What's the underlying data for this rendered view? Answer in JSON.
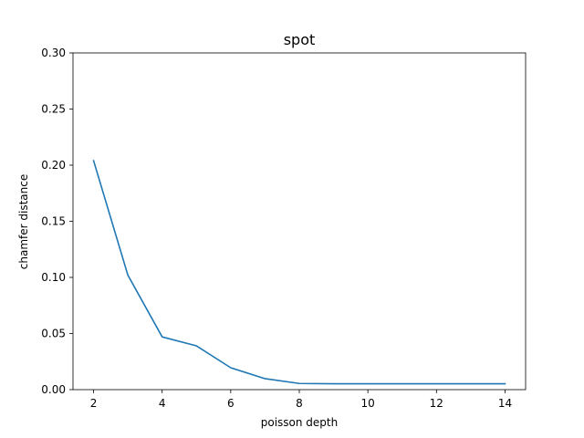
{
  "chart_data": {
    "type": "line",
    "title": "spot",
    "xlabel": "poisson depth",
    "ylabel": "chamfer distance",
    "xlim": [
      1.4,
      14.6
    ],
    "ylim": [
      0.0,
      0.3
    ],
    "xticks": [
      2,
      4,
      6,
      8,
      10,
      12,
      14
    ],
    "xtick_labels": [
      "2",
      "4",
      "6",
      "8",
      "10",
      "12",
      "14"
    ],
    "yticks": [
      0.0,
      0.05,
      0.1,
      0.15,
      0.2,
      0.25,
      0.3
    ],
    "ytick_labels": [
      "0.00",
      "0.05",
      "0.10",
      "0.15",
      "0.20",
      "0.25",
      "0.30"
    ],
    "grid": false,
    "series": [
      {
        "color": "#1f77b4",
        "x": [
          2,
          3,
          4,
          5,
          6,
          7,
          8,
          9,
          10,
          11,
          12,
          13,
          14
        ],
        "y": [
          0.204,
          0.102,
          0.047,
          0.039,
          0.0195,
          0.0098,
          0.0055,
          0.0052,
          0.0052,
          0.0052,
          0.0052,
          0.0052,
          0.0052
        ]
      }
    ]
  }
}
